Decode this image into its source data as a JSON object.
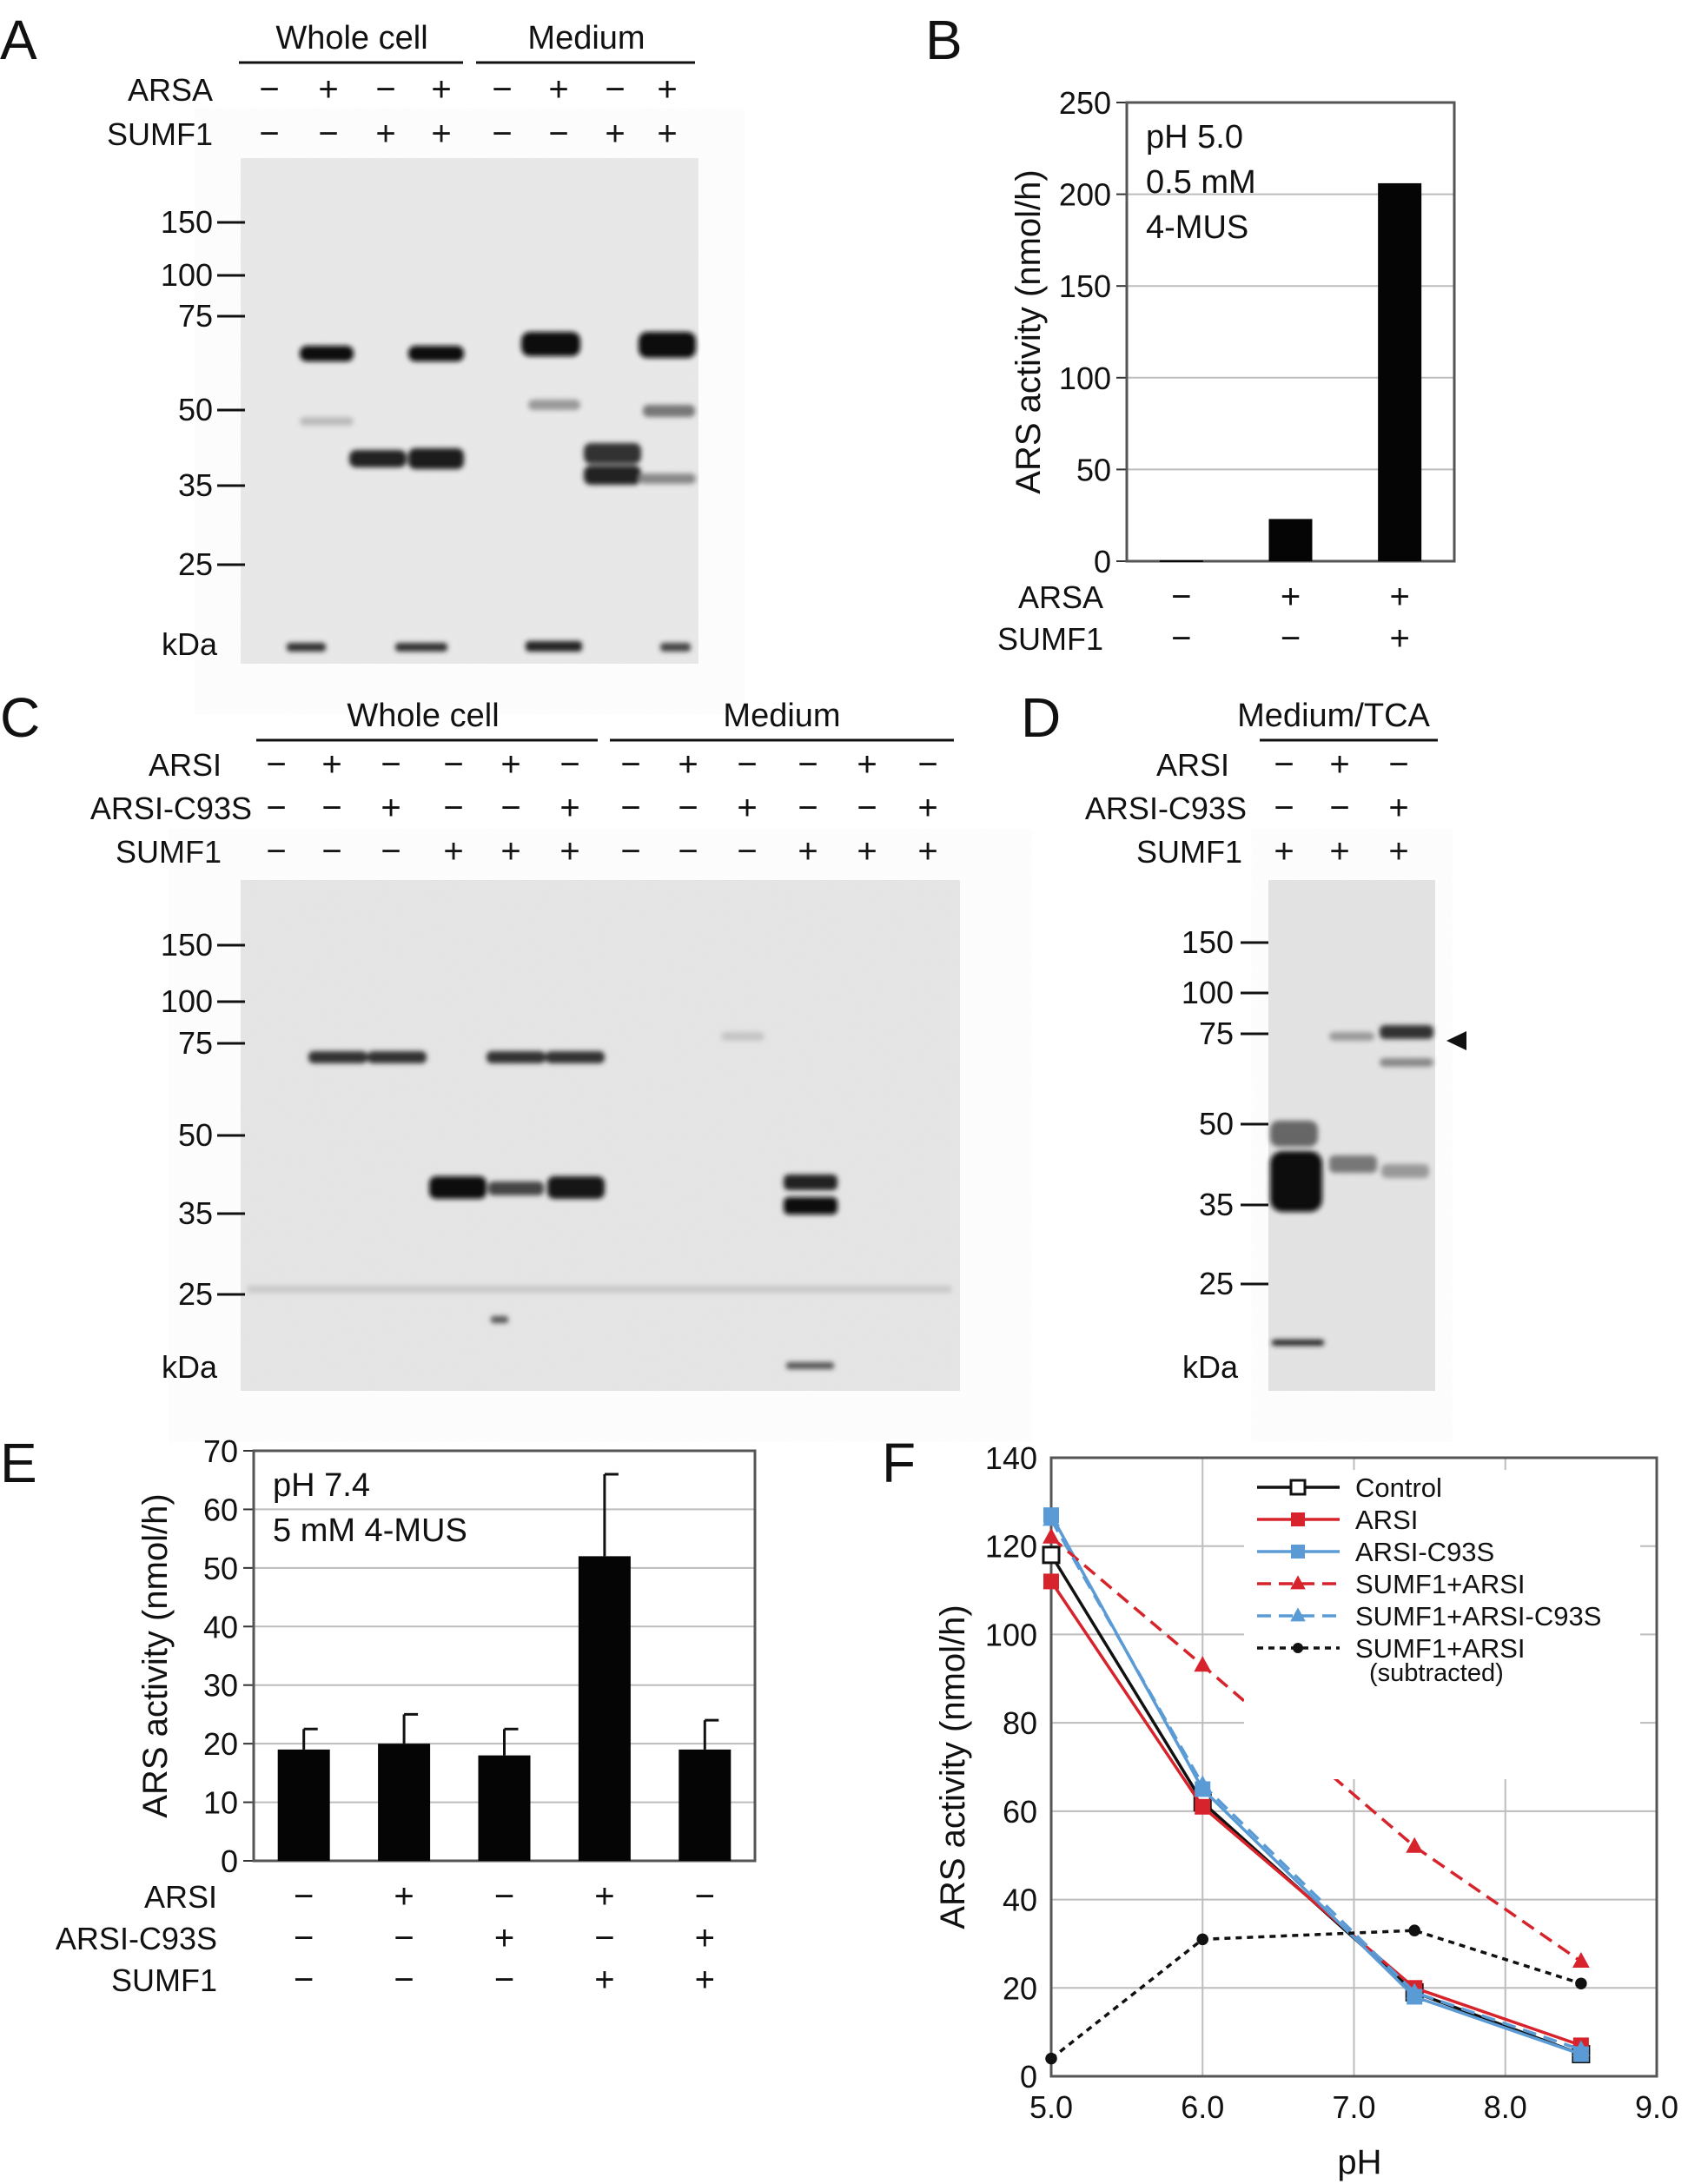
{
  "panel_letters": [
    "A",
    "B",
    "C",
    "D",
    "E",
    "F"
  ],
  "gels": {
    "A": {
      "groups": [
        "Whole cell",
        "Medium"
      ],
      "row_labels": [
        "ARSA",
        "SUMF1"
      ],
      "lanes": [
        [
          "−",
          "+",
          "−",
          "+",
          "−",
          "+",
          "−",
          "+"
        ],
        [
          "−",
          "−",
          "+",
          "+",
          "−",
          "−",
          "+",
          "+"
        ]
      ],
      "markers": [
        "150",
        "100",
        "75",
        "50",
        "35",
        "25"
      ],
      "unit": "kDa"
    },
    "C": {
      "groups": [
        "Whole cell",
        "Medium"
      ],
      "row_labels": [
        "ARSI",
        "ARSI-C93S",
        "SUMF1"
      ],
      "lanes": [
        [
          "−",
          "+",
          "−",
          "−",
          "+",
          "−",
          "−",
          "+",
          "−",
          "−",
          "+",
          "−"
        ],
        [
          "−",
          "−",
          "+",
          "−",
          "−",
          "+",
          "−",
          "−",
          "+",
          "−",
          "−",
          "+"
        ],
        [
          "−",
          "−",
          "−",
          "+",
          "+",
          "+",
          "−",
          "−",
          "−",
          "+",
          "+",
          "+"
        ]
      ],
      "markers": [
        "150",
        "100",
        "75",
        "50",
        "35",
        "25"
      ],
      "unit": "kDa"
    },
    "D": {
      "groups": [
        "Medium/TCA"
      ],
      "row_labels": [
        "ARSI",
        "ARSI-C93S",
        "SUMF1"
      ],
      "lanes": [
        [
          "−",
          "+",
          "−"
        ],
        [
          "−",
          "−",
          "+"
        ],
        [
          "+",
          "+",
          "+"
        ]
      ],
      "markers": [
        "150",
        "100",
        "75",
        "50",
        "35",
        "25"
      ],
      "unit": "kDa"
    }
  },
  "chart_data": [
    {
      "panel": "B",
      "type": "bar",
      "ylabel": "ARS activity (nmol/h)",
      "ylim": [
        0,
        250
      ],
      "yticks": [
        "0",
        "50",
        "100",
        "150",
        "200",
        "250"
      ],
      "values": [
        0.5,
        23,
        206
      ],
      "annotation": [
        "pH 5.0",
        "0.5 mM",
        "4-MUS"
      ],
      "row_labels": [
        "ARSA",
        "SUMF1"
      ],
      "conditions": [
        [
          "−",
          "+",
          "+"
        ],
        [
          "−",
          "−",
          "+"
        ]
      ],
      "grid": true
    },
    {
      "panel": "E",
      "type": "bar",
      "ylabel": "ARS activity (nmol/h)",
      "ylim": [
        0,
        70
      ],
      "yticks": [
        "0",
        "10",
        "20",
        "30",
        "40",
        "50",
        "60",
        "70"
      ],
      "values": [
        19,
        20,
        18,
        52,
        19
      ],
      "errors": [
        3.5,
        5,
        4.5,
        14,
        5
      ],
      "annotation": [
        "pH 7.4",
        "5 mM 4-MUS"
      ],
      "row_labels": [
        "ARSI",
        "ARSI-C93S",
        "SUMF1"
      ],
      "conditions": [
        [
          "−",
          "+",
          "−",
          "+",
          "−"
        ],
        [
          "−",
          "−",
          "+",
          "−",
          "+"
        ],
        [
          "−",
          "−",
          "−",
          "+",
          "+"
        ]
      ],
      "grid": true
    },
    {
      "panel": "F",
      "type": "line",
      "xlabel": "pH",
      "ylabel": "ARS activity (nmol/h)",
      "xlim": [
        5.0,
        9.0
      ],
      "ylim": [
        0,
        140
      ],
      "xticks": [
        "5.0",
        "6.0",
        "7.0",
        "8.0",
        "9.0"
      ],
      "yticks": [
        "0",
        "20",
        "40",
        "60",
        "80",
        "100",
        "120",
        "140"
      ],
      "grid": true,
      "legend": "top-right",
      "series": [
        {
          "name": "Control",
          "color": "#111111",
          "dash": "solid",
          "marker": "open-square",
          "x": [
            5.0,
            6.0,
            7.4,
            8.5
          ],
          "y": [
            118,
            62,
            19,
            5
          ]
        },
        {
          "name": "ARSI",
          "color": "#d7232b",
          "dash": "solid",
          "marker": "square",
          "x": [
            5.0,
            6.0,
            7.4,
            8.5
          ],
          "y": [
            112,
            61,
            20,
            7
          ]
        },
        {
          "name": "ARSI-C93S",
          "color": "#5b9bd5",
          "dash": "solid",
          "marker": "square",
          "x": [
            5.0,
            6.0,
            7.4,
            8.5
          ],
          "y": [
            127,
            65,
            18,
            5
          ]
        },
        {
          "name": "SUMF1+ARSI",
          "color": "#d7232b",
          "dash": "dashed",
          "marker": "triangle",
          "x": [
            5.0,
            6.0,
            7.4,
            8.5
          ],
          "y": [
            122,
            93,
            52,
            26
          ]
        },
        {
          "name": "SUMF1+ARSI-C93S",
          "color": "#5b9bd5",
          "dash": "dashed",
          "marker": "triangle",
          "x": [
            5.0,
            6.0,
            7.4,
            8.5
          ],
          "y": [
            126,
            66,
            19,
            6
          ]
        },
        {
          "name": "SUMF1+ARSI",
          "name_line2": "(subtracted)",
          "color": "#111111",
          "dash": "dotted",
          "marker": "circle",
          "x": [
            5.0,
            6.0,
            7.4,
            8.5
          ],
          "y": [
            4,
            31,
            33,
            21
          ]
        }
      ]
    }
  ]
}
